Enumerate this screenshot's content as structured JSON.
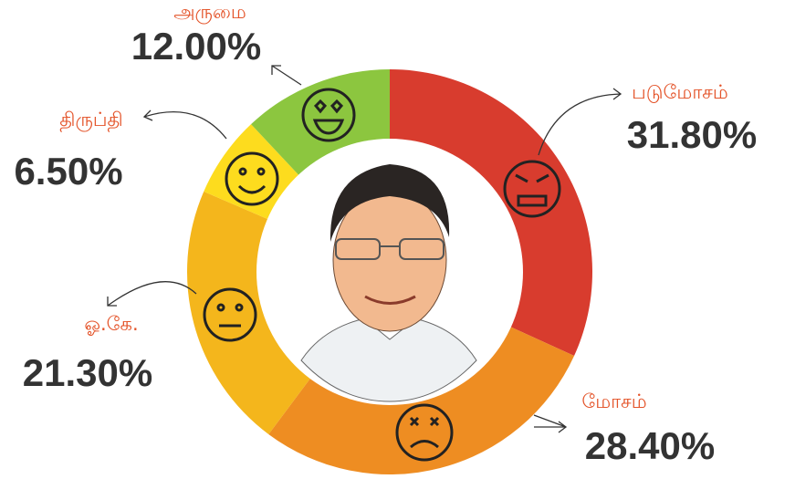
{
  "chart_data": {
    "type": "donut",
    "categories": [
      "படுமோசம்",
      "மோசம்",
      "ஓ.கே.",
      "திருப்தி",
      "அருமை"
    ],
    "values": [
      31.8,
      28.4,
      21.3,
      6.5,
      12.0
    ],
    "value_labels": [
      "31.80%",
      "28.40%",
      "21.30%",
      "6.50%",
      "12.00%"
    ],
    "colors": [
      "#d83c2e",
      "#ee8d22",
      "#f4b61c",
      "#fddc1e",
      "#8cc63f"
    ]
  }
}
